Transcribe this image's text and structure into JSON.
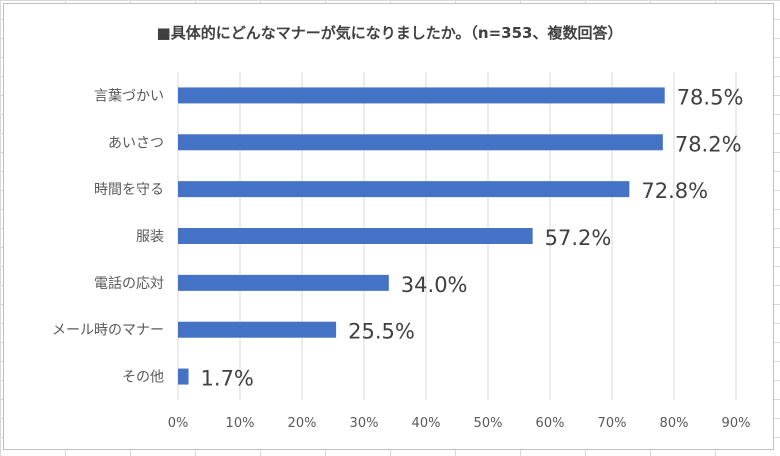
{
  "chart_data": {
    "type": "bar",
    "orientation": "horizontal",
    "title": "■具体的にどんなマナーが気になりましたか。（n=353、複数回答）",
    "categories": [
      "言葉づかい",
      "あいさつ",
      "時間を守る",
      "服装",
      "電話の応対",
      "メール時のマナー",
      "その他"
    ],
    "values": [
      78.5,
      78.2,
      72.8,
      57.2,
      34.0,
      25.5,
      1.7
    ],
    "value_labels": [
      "78.5%",
      "78.2%",
      "72.8%",
      "57.2%",
      "34.0%",
      "25.5%",
      "1.7%"
    ],
    "x_ticks": [
      "0%",
      "10%",
      "20%",
      "30%",
      "40%",
      "50%",
      "60%",
      "70%",
      "80%",
      "90%"
    ],
    "xlim": [
      0,
      90
    ],
    "grid": true,
    "legend": "none",
    "bar_color": "#4472c4",
    "grid_color": "#d9d9d9"
  }
}
